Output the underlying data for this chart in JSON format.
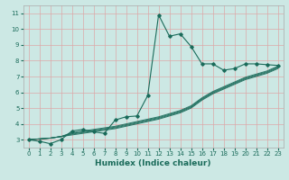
{
  "xlabel": "Humidex (Indice chaleur)",
  "bg_color": "#cce8e4",
  "grid_color": "#dda8a8",
  "line_color": "#1a6b5a",
  "xlim": [
    -0.5,
    23.5
  ],
  "ylim": [
    2.5,
    11.5
  ],
  "xticks": [
    0,
    1,
    2,
    3,
    4,
    5,
    6,
    7,
    8,
    9,
    10,
    11,
    12,
    13,
    14,
    15,
    16,
    17,
    18,
    19,
    20,
    21,
    22,
    23
  ],
  "yticks": [
    3,
    4,
    5,
    6,
    7,
    8,
    9,
    10,
    11
  ],
  "main_x": [
    0,
    1,
    2,
    3,
    4,
    5,
    6,
    7,
    8,
    9,
    10,
    11,
    12,
    13,
    14,
    15,
    16,
    17,
    18,
    19,
    20,
    21,
    22,
    23
  ],
  "main_y": [
    3.0,
    2.9,
    2.75,
    3.0,
    3.55,
    3.65,
    3.5,
    3.4,
    4.25,
    4.45,
    4.5,
    5.8,
    10.9,
    9.55,
    9.7,
    8.9,
    7.8,
    7.8,
    7.4,
    7.5,
    7.8,
    7.8,
    7.75,
    7.7
  ],
  "band_lines": [
    [
      3.0,
      3.05,
      3.1,
      3.2,
      3.3,
      3.4,
      3.5,
      3.6,
      3.7,
      3.85,
      4.0,
      4.15,
      4.3,
      4.5,
      4.7,
      5.0,
      5.5,
      5.9,
      6.2,
      6.5,
      6.8,
      7.0,
      7.2,
      7.5
    ],
    [
      3.0,
      3.05,
      3.1,
      3.2,
      3.35,
      3.45,
      3.55,
      3.65,
      3.75,
      3.9,
      4.05,
      4.2,
      4.35,
      4.55,
      4.75,
      5.05,
      5.55,
      5.95,
      6.25,
      6.55,
      6.85,
      7.05,
      7.25,
      7.55
    ],
    [
      3.0,
      3.05,
      3.1,
      3.2,
      3.4,
      3.5,
      3.6,
      3.7,
      3.8,
      3.95,
      4.1,
      4.25,
      4.4,
      4.6,
      4.8,
      5.1,
      5.6,
      6.0,
      6.3,
      6.6,
      6.9,
      7.1,
      7.3,
      7.6
    ],
    [
      3.0,
      3.05,
      3.1,
      3.2,
      3.45,
      3.55,
      3.65,
      3.75,
      3.85,
      4.0,
      4.15,
      4.3,
      4.45,
      4.65,
      4.85,
      5.15,
      5.65,
      6.05,
      6.35,
      6.65,
      6.95,
      7.15,
      7.35,
      7.65
    ]
  ]
}
